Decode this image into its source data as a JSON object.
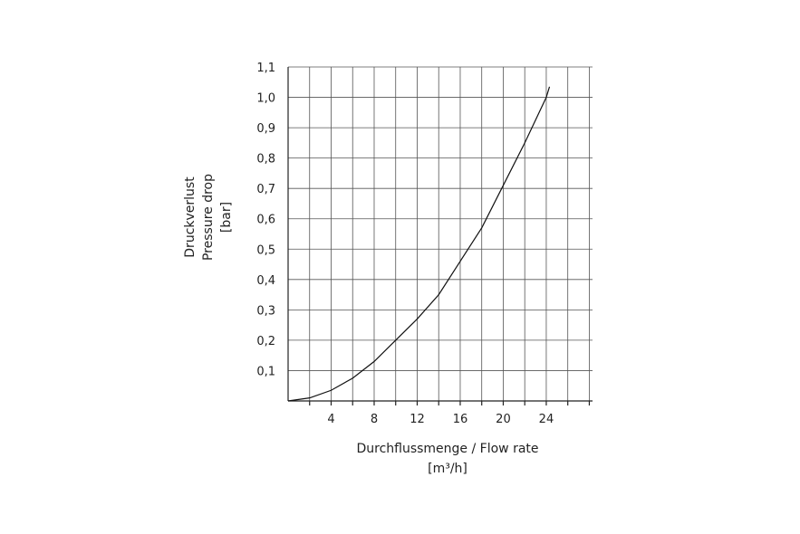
{
  "chart_data": {
    "type": "line",
    "y_label": [
      "Druckverlust",
      "Pressure drop",
      "[bar]"
    ],
    "x_label": [
      "Durchflussmenge / Flow rate",
      "[m³/h]"
    ],
    "x": [
      0,
      2,
      4,
      6,
      8,
      10,
      12,
      14,
      16,
      18,
      20,
      22,
      24,
      24.3
    ],
    "series": [
      {
        "color": "#111111",
        "values": [
          0,
          0.01,
          0.035,
          0.075,
          0.13,
          0.2,
          0.27,
          0.35,
          0.46,
          0.57,
          0.71,
          0.85,
          1.0,
          1.035
        ]
      }
    ],
    "xlim": [
      0,
      28.3
    ],
    "xticks": [
      4,
      8,
      12,
      16,
      20,
      24
    ],
    "minor_xticks": [
      2,
      6,
      10,
      14,
      18,
      22,
      26,
      28
    ],
    "ylim": [
      0,
      1.1
    ],
    "yticks": [
      {
        "value": 0.1,
        "label": "0,1"
      },
      {
        "value": 0.2,
        "label": "0,2"
      },
      {
        "value": 0.3,
        "label": "0,3"
      },
      {
        "value": 0.4,
        "label": "0,4"
      },
      {
        "value": 0.5,
        "label": "0,5"
      },
      {
        "value": 0.6,
        "label": "0,6"
      },
      {
        "value": 0.7,
        "label": "0,7"
      },
      {
        "value": 0.8,
        "label": "0,8"
      },
      {
        "value": 0.9,
        "label": "0,9"
      },
      {
        "value": 1.0,
        "label": "1,0"
      },
      {
        "value": 1.1,
        "label": "1,1"
      }
    ],
    "grid": true
  }
}
